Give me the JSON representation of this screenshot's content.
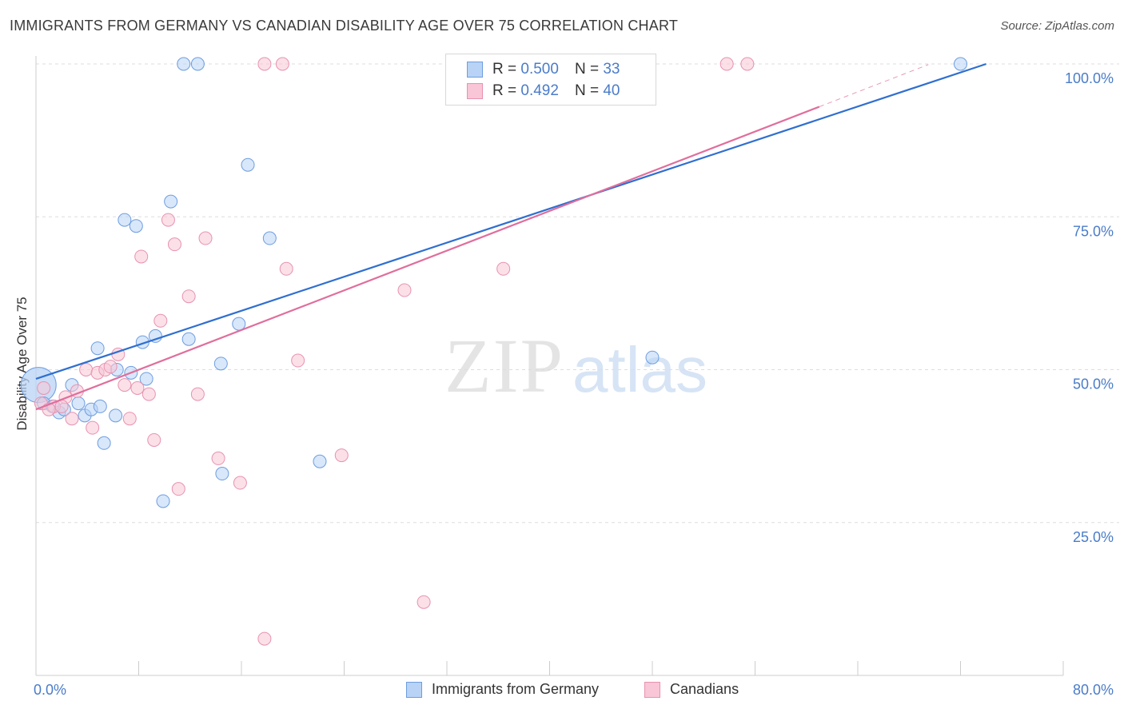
{
  "title": "IMMIGRANTS FROM GERMANY VS CANADIAN DISABILITY AGE OVER 75 CORRELATION CHART",
  "source": "Source: ZipAtlas.com",
  "watermark": {
    "zip": "ZIP",
    "atlas": "atlas"
  },
  "colors": {
    "blue_fill": "#b8d3f5",
    "blue_stroke": "#6d9de0",
    "blue_line": "#2f6fd0",
    "pink_fill": "#f8c6d6",
    "pink_stroke": "#e892b0",
    "pink_line": "#e06e9c",
    "grid": "#dddddd",
    "tick_text": "#4a7cc9"
  },
  "legend_top": {
    "rows": [
      {
        "r_label": "R =",
        "r_value": "0.500",
        "n_label": "N =",
        "n_value": "33"
      },
      {
        "r_label": "R =",
        "r_value": "0.492",
        "n_label": "N =",
        "n_value": "40"
      }
    ]
  },
  "legend_bottom": [
    "Immigrants from Germany",
    "Canadians"
  ],
  "chart_data": {
    "type": "scatter",
    "title": "IMMIGRANTS FROM GERMANY VS CANADIAN DISABILITY AGE OVER 75 CORRELATION CHART",
    "xlabel": "",
    "ylabel": "Disability Age Over 75",
    "xlim": [
      0,
      80
    ],
    "ylim": [
      0,
      103
    ],
    "x_tick_labels": [
      "0.0%",
      "80.0%"
    ],
    "y_ticks": [
      25,
      50,
      75,
      100
    ],
    "y_tick_labels": [
      "25.0%",
      "50.0%",
      "75.0%",
      "100.0%"
    ],
    "grid": true,
    "legend_position": "top-center",
    "series": [
      {
        "name": "Immigrants from Germany",
        "color": "#6d9de0",
        "r": 0.5,
        "n": 33,
        "trend": {
          "x": [
            0,
            74
          ],
          "y": [
            48.5,
            100
          ]
        },
        "points": [
          {
            "x": 0.2,
            "y": 47.5,
            "big": true
          },
          {
            "x": 0.6,
            "y": 44.5
          },
          {
            "x": 1.3,
            "y": 44.0
          },
          {
            "x": 1.8,
            "y": 43.0
          },
          {
            "x": 2.2,
            "y": 43.5
          },
          {
            "x": 2.8,
            "y": 47.5
          },
          {
            "x": 3.3,
            "y": 44.5
          },
          {
            "x": 3.8,
            "y": 42.5
          },
          {
            "x": 4.3,
            "y": 43.5
          },
          {
            "x": 4.8,
            "y": 53.5
          },
          {
            "x": 5.3,
            "y": 38.0
          },
          {
            "x": 6.2,
            "y": 42.5
          },
          {
            "x": 6.3,
            "y": 50.0
          },
          {
            "x": 6.9,
            "y": 74.5
          },
          {
            "x": 7.4,
            "y": 49.5
          },
          {
            "x": 7.8,
            "y": 73.5
          },
          {
            "x": 8.3,
            "y": 54.5
          },
          {
            "x": 8.6,
            "y": 48.5
          },
          {
            "x": 9.3,
            "y": 55.5
          },
          {
            "x": 9.9,
            "y": 28.5
          },
          {
            "x": 10.5,
            "y": 77.5
          },
          {
            "x": 11.5,
            "y": 100.0
          },
          {
            "x": 11.9,
            "y": 55.0
          },
          {
            "x": 12.6,
            "y": 100.0
          },
          {
            "x": 14.4,
            "y": 51.0
          },
          {
            "x": 14.5,
            "y": 33.0
          },
          {
            "x": 15.8,
            "y": 57.5
          },
          {
            "x": 16.5,
            "y": 83.5
          },
          {
            "x": 18.2,
            "y": 71.5
          },
          {
            "x": 22.1,
            "y": 35.0
          },
          {
            "x": 48.0,
            "y": 52.0
          },
          {
            "x": 72.0,
            "y": 100.0
          },
          {
            "x": 5.0,
            "y": 44.0
          }
        ]
      },
      {
        "name": "Canadians",
        "color": "#e892b0",
        "r": 0.492,
        "n": 40,
        "trend": {
          "x": [
            0,
            61
          ],
          "y": [
            43.5,
            93
          ]
        },
        "points": [
          {
            "x": 0.4,
            "y": 44.5
          },
          {
            "x": 1.4,
            "y": 44.0
          },
          {
            "x": 2.3,
            "y": 45.5
          },
          {
            "x": 2.8,
            "y": 42.0
          },
          {
            "x": 3.2,
            "y": 46.5
          },
          {
            "x": 3.9,
            "y": 50.0
          },
          {
            "x": 4.4,
            "y": 40.5
          },
          {
            "x": 4.8,
            "y": 49.5
          },
          {
            "x": 5.4,
            "y": 50.0
          },
          {
            "x": 5.8,
            "y": 50.5
          },
          {
            "x": 6.4,
            "y": 52.5
          },
          {
            "x": 6.9,
            "y": 47.5
          },
          {
            "x": 7.3,
            "y": 42.0
          },
          {
            "x": 7.9,
            "y": 47.0
          },
          {
            "x": 8.2,
            "y": 68.5
          },
          {
            "x": 8.8,
            "y": 46.0
          },
          {
            "x": 9.2,
            "y": 38.5
          },
          {
            "x": 9.7,
            "y": 58.0
          },
          {
            "x": 10.3,
            "y": 74.5
          },
          {
            "x": 10.8,
            "y": 70.5
          },
          {
            "x": 11.1,
            "y": 30.5
          },
          {
            "x": 11.9,
            "y": 62.0
          },
          {
            "x": 12.6,
            "y": 46.0
          },
          {
            "x": 13.2,
            "y": 71.5
          },
          {
            "x": 14.2,
            "y": 35.5
          },
          {
            "x": 15.9,
            "y": 31.5
          },
          {
            "x": 17.8,
            "y": 6.0
          },
          {
            "x": 17.8,
            "y": 100.0
          },
          {
            "x": 19.2,
            "y": 100.0
          },
          {
            "x": 19.5,
            "y": 66.5
          },
          {
            "x": 20.4,
            "y": 51.5
          },
          {
            "x": 23.8,
            "y": 36.0
          },
          {
            "x": 28.7,
            "y": 63.0
          },
          {
            "x": 30.2,
            "y": 12.0
          },
          {
            "x": 36.4,
            "y": 66.5
          },
          {
            "x": 53.8,
            "y": 100.0
          },
          {
            "x": 55.4,
            "y": 100.0
          },
          {
            "x": 0.6,
            "y": 47.0
          },
          {
            "x": 2.0,
            "y": 44.0
          },
          {
            "x": 1.0,
            "y": 43.5
          }
        ]
      }
    ]
  }
}
